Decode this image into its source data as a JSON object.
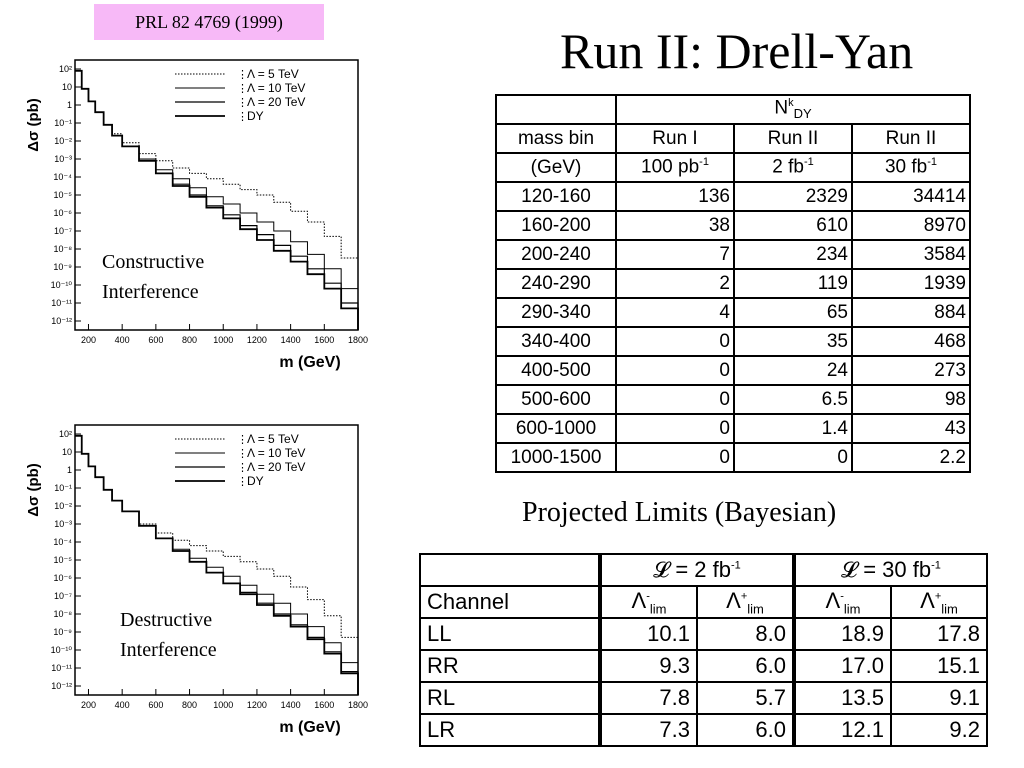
{
  "reference": "PRL 82 4769 (1999)",
  "slide_title": "Run II: Drell-Yan",
  "chart_data": [
    {
      "type": "line",
      "panel": "top",
      "annotation": [
        "Constructive",
        "Interference"
      ],
      "ylabel": "Δσ (pb)",
      "xlabel": "m (GeV)",
      "x_ticks": [
        200,
        400,
        600,
        800,
        1000,
        1200,
        1400,
        1600,
        1800
      ],
      "y_ticks": [
        "10²",
        "10",
        "1",
        "10⁻¹",
        "10⁻²",
        "10⁻³",
        "10⁻⁴",
        "10⁻⁵",
        "10⁻⁶",
        "10⁻⁷",
        "10⁻⁸",
        "10⁻⁹",
        "10⁻¹⁰",
        "10⁻¹¹",
        "10⁻¹²"
      ],
      "xlim": [
        120,
        1800
      ],
      "ylim_log10": [
        -12.5,
        2.5
      ],
      "legend": [
        "Λ = 5 TeV",
        "Λ = 10 TeV",
        "Λ = 20 TeV",
        "DY"
      ],
      "x": [
        120,
        160,
        200,
        240,
        290,
        340,
        400,
        500,
        600,
        700,
        800,
        900,
        1000,
        1100,
        1200,
        1300,
        1400,
        1500,
        1600,
        1700,
        1800
      ],
      "series": [
        {
          "name": "Λ = 5 TeV",
          "log10_values": [
            1.9,
            0.9,
            0.2,
            -0.4,
            -1.1,
            -1.6,
            -2.1,
            -2.7,
            -3.1,
            -3.5,
            -3.8,
            -4.1,
            -4.4,
            -4.7,
            -5.0,
            -5.4,
            -5.9,
            -6.5,
            -7.3,
            -8.5,
            -10.5
          ]
        },
        {
          "name": "Λ = 10 TeV",
          "log10_values": [
            1.9,
            0.9,
            0.2,
            -0.4,
            -1.1,
            -1.7,
            -2.3,
            -3.0,
            -3.6,
            -4.1,
            -4.6,
            -5.1,
            -5.5,
            -6.0,
            -6.5,
            -7.0,
            -7.6,
            -8.3,
            -9.1,
            -10.2,
            -11.8
          ]
        },
        {
          "name": "Λ = 20 TeV",
          "log10_values": [
            1.9,
            0.9,
            0.2,
            -0.4,
            -1.1,
            -1.7,
            -2.3,
            -3.1,
            -3.8,
            -4.4,
            -5.0,
            -5.6,
            -6.1,
            -6.7,
            -7.2,
            -7.8,
            -8.4,
            -9.1,
            -9.9,
            -11.0,
            -12.3
          ]
        },
        {
          "name": "DY",
          "log10_values": [
            1.9,
            0.9,
            0.2,
            -0.4,
            -1.1,
            -1.7,
            -2.3,
            -3.1,
            -3.8,
            -4.5,
            -5.1,
            -5.7,
            -6.3,
            -6.9,
            -7.5,
            -8.1,
            -8.7,
            -9.4,
            -10.2,
            -11.3,
            -12.5
          ]
        }
      ]
    },
    {
      "type": "line",
      "panel": "bottom",
      "annotation": [
        "Destructive",
        "Interference"
      ],
      "ylabel": "Δσ (pb)",
      "xlabel": "m (GeV)",
      "x_ticks": [
        200,
        400,
        600,
        800,
        1000,
        1200,
        1400,
        1600,
        1800
      ],
      "y_ticks": [
        "10²",
        "10",
        "1",
        "10⁻¹",
        "10⁻²",
        "10⁻³",
        "10⁻⁴",
        "10⁻⁵",
        "10⁻⁶",
        "10⁻⁷",
        "10⁻⁸",
        "10⁻⁹",
        "10⁻¹⁰",
        "10⁻¹¹",
        "10⁻¹²"
      ],
      "xlim": [
        120,
        1800
      ],
      "ylim_log10": [
        -12.5,
        2.5
      ],
      "legend": [
        "Λ = 5 TeV",
        "Λ = 10 TeV",
        "Λ = 20 TeV",
        "DY"
      ],
      "x": [
        120,
        160,
        200,
        240,
        290,
        340,
        400,
        500,
        600,
        700,
        800,
        900,
        1000,
        1100,
        1200,
        1300,
        1400,
        1500,
        1600,
        1700,
        1800
      ],
      "series": [
        {
          "name": "Λ = 5 TeV",
          "log10_values": [
            1.9,
            0.9,
            0.2,
            -0.4,
            -1.1,
            -1.7,
            -2.3,
            -3.0,
            -3.5,
            -3.9,
            -4.2,
            -4.5,
            -4.8,
            -5.1,
            -5.5,
            -5.9,
            -6.5,
            -7.2,
            -8.1,
            -9.3,
            -11.5
          ]
        },
        {
          "name": "Λ = 10 TeV",
          "log10_values": [
            1.9,
            0.9,
            0.2,
            -0.4,
            -1.1,
            -1.7,
            -2.3,
            -3.1,
            -3.8,
            -4.4,
            -4.9,
            -5.4,
            -5.9,
            -6.4,
            -6.9,
            -7.4,
            -8.0,
            -8.7,
            -9.6,
            -10.7,
            -12.2
          ]
        },
        {
          "name": "Λ = 20 TeV",
          "log10_values": [
            1.9,
            0.9,
            0.2,
            -0.4,
            -1.1,
            -1.7,
            -2.3,
            -3.1,
            -3.8,
            -4.5,
            -5.1,
            -5.7,
            -6.3,
            -6.8,
            -7.4,
            -8.0,
            -8.6,
            -9.3,
            -10.1,
            -11.2,
            -12.4
          ]
        },
        {
          "name": "DY",
          "log10_values": [
            1.9,
            0.9,
            0.2,
            -0.4,
            -1.1,
            -1.7,
            -2.3,
            -3.1,
            -3.8,
            -4.5,
            -5.1,
            -5.7,
            -6.3,
            -6.9,
            -7.5,
            -8.1,
            -8.7,
            -9.4,
            -10.2,
            -11.3,
            -12.5
          ]
        }
      ]
    },
    {
      "type": "table",
      "group_header": "N<sup>k</sup><sub>DY</sub>",
      "group_header_text": {
        "base": "N",
        "sup": "k",
        "sub": "DY"
      },
      "col1_header": [
        "mass bin",
        "(GeV)"
      ],
      "columns": [
        {
          "run": "Run I",
          "lumi": "100 pb",
          "lumi_sup": "-1"
        },
        {
          "run": "Run II",
          "lumi": "2 fb",
          "lumi_sup": "-1"
        },
        {
          "run": "Run II",
          "lumi": "30 fb",
          "lumi_sup": "-1"
        }
      ],
      "rows": [
        {
          "bin": "120-160",
          "v": [
            "136",
            "2329",
            "34414"
          ]
        },
        {
          "bin": "160-200",
          "v": [
            "38",
            "610",
            "8970"
          ]
        },
        {
          "bin": "200-240",
          "v": [
            "7",
            "234",
            "3584"
          ]
        },
        {
          "bin": "240-290",
          "v": [
            "2",
            "119",
            "1939"
          ]
        },
        {
          "bin": "290-340",
          "v": [
            "4",
            "65",
            "884"
          ]
        },
        {
          "bin": "340-400",
          "v": [
            "0",
            "35",
            "468"
          ]
        },
        {
          "bin": "400-500",
          "v": [
            "0",
            "24",
            "273"
          ]
        },
        {
          "bin": "500-600",
          "v": [
            "0",
            "6.5",
            "98"
          ]
        },
        {
          "bin": "600-1000",
          "v": [
            "0",
            "1.4",
            "43"
          ]
        },
        {
          "bin": "1000-1500",
          "v": [
            "0",
            "0",
            "2.2"
          ]
        }
      ]
    },
    {
      "type": "table",
      "caption": "Projected Limits (Bayesian)",
      "lumi_headers": [
        {
          "text": "𝓛 = 2 fb",
          "sup": "-1"
        },
        {
          "text": "𝓛 = 30 fb",
          "sup": "-1"
        }
      ],
      "channel_header": "Channel",
      "limit_headers": [
        {
          "base": "Λ",
          "sup": "-",
          "sub": "lim"
        },
        {
          "base": "Λ",
          "sup": "+",
          "sub": "lim"
        },
        {
          "base": "Λ",
          "sup": "-",
          "sub": "lim"
        },
        {
          "base": "Λ",
          "sup": "+",
          "sub": "lim"
        }
      ],
      "rows": [
        {
          "channel": "LL",
          "v": [
            "10.1",
            "8.0",
            "18.9",
            "17.8"
          ]
        },
        {
          "channel": "RR",
          "v": [
            "9.3",
            "6.0",
            "17.0",
            "15.1"
          ]
        },
        {
          "channel": "RL",
          "v": [
            "7.8",
            "5.7",
            "13.5",
            "9.1"
          ]
        },
        {
          "channel": "LR",
          "v": [
            "7.3",
            "6.0",
            "12.1",
            "9.2"
          ]
        }
      ]
    }
  ]
}
